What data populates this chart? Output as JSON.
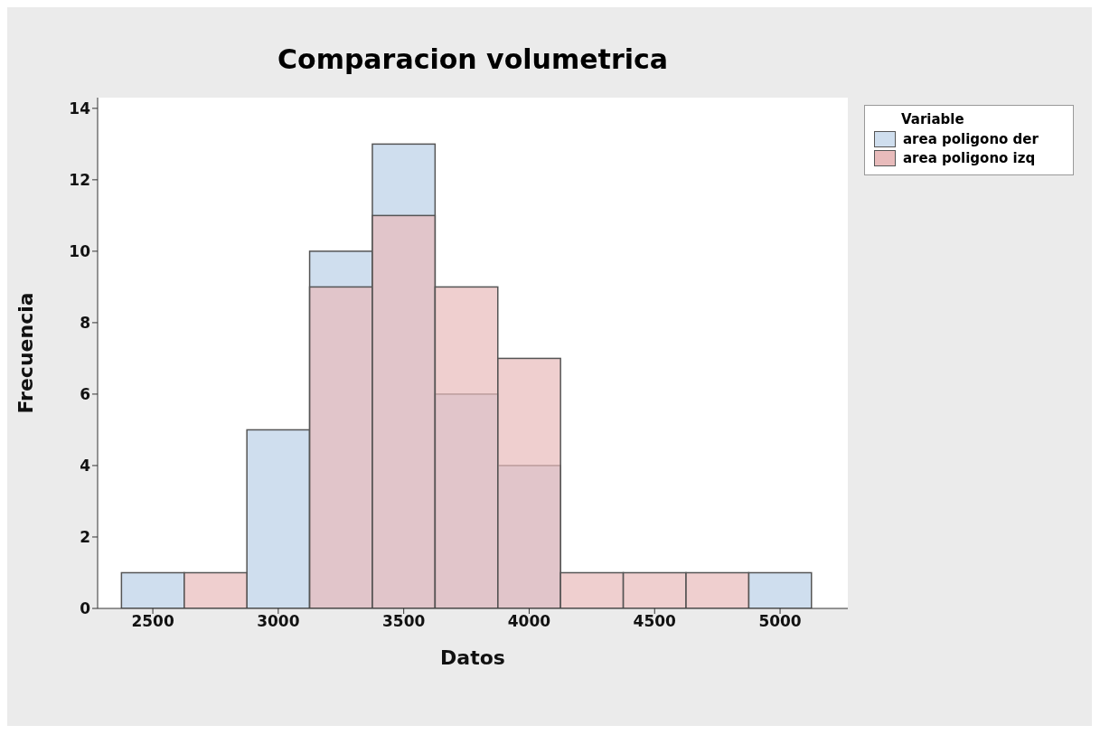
{
  "chart_data": {
    "type": "histogram",
    "title": "Comparacion volumetrica",
    "xlabel": "Datos",
    "ylabel": "Frecuencia",
    "legend_title": "Variable",
    "bins": [
      2375,
      2625,
      2875,
      3125,
      3375,
      3625,
      3875,
      4125,
      4375,
      4625,
      4875,
      5125
    ],
    "series": [
      {
        "name": "area poligono der",
        "color": "#cfdeee",
        "values": [
          1,
          0,
          5,
          10,
          13,
          6,
          4,
          0,
          0,
          0,
          1
        ]
      },
      {
        "name": "area poligono izq",
        "color": "#e8bbbb",
        "values": [
          0,
          1,
          0,
          9,
          11,
          9,
          7,
          1,
          1,
          1,
          0
        ]
      }
    ],
    "xlim": [
      2280,
      5270
    ],
    "xticks": [
      2500,
      3000,
      3500,
      4000,
      4500,
      5000
    ],
    "ylim": [
      0,
      14.3
    ],
    "yticks": [
      0,
      2,
      4,
      6,
      8,
      10,
      12,
      14
    ],
    "grid": false,
    "legend": "top right"
  }
}
